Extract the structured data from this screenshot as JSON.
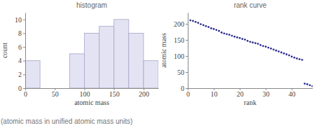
{
  "chart_data": [
    {
      "type": "histogram",
      "title": "histogram",
      "x_label": "atomic mass",
      "y_label": "count",
      "bins": [
        0,
        25,
        50,
        75,
        100,
        125,
        150,
        175,
        200,
        225
      ],
      "counts": [
        4,
        0,
        0,
        5,
        8,
        9,
        10,
        8,
        4
      ],
      "color": "#e3e3f3",
      "xlim": [
        0,
        225
      ],
      "xticks": [
        0,
        50,
        100,
        150,
        200
      ],
      "ylim": [
        0,
        11
      ],
      "yticks": [
        0,
        2,
        4,
        6,
        8,
        10
      ]
    },
    {
      "type": "scatter",
      "title": "rank curve",
      "x_label": "rank",
      "y_label": "atomic mass",
      "x": [
        1,
        2,
        3,
        4,
        5,
        6,
        7,
        8,
        9,
        10,
        11,
        12,
        13,
        14,
        15,
        16,
        17,
        18,
        19,
        20,
        21,
        22,
        23,
        24,
        25,
        26,
        27,
        28,
        29,
        30,
        31,
        32,
        33,
        34,
        35,
        36,
        37,
        38,
        39,
        40,
        41,
        42,
        43,
        44,
        45,
        46,
        47,
        48
      ],
      "values": [
        211,
        209,
        206,
        203,
        199,
        196,
        193,
        190,
        186,
        184,
        181,
        178,
        173,
        170,
        168,
        166,
        163,
        160,
        158,
        156,
        153,
        151,
        147,
        144,
        142,
        140,
        138,
        134,
        131,
        129,
        126,
        123,
        120,
        117,
        114,
        111,
        108,
        105,
        102,
        98,
        95,
        92,
        90,
        88,
        14,
        12,
        9,
        6
      ],
      "color": "#2b2b8f",
      "marker": "circle",
      "xlim": [
        0,
        48
      ],
      "xticks": [
        0,
        10,
        20,
        30,
        40
      ],
      "ylim": [
        0,
        235
      ],
      "yticks": [
        0,
        50,
        100,
        150,
        200
      ]
    }
  ],
  "caption": "(atomic mass in unified atomic mass units)"
}
